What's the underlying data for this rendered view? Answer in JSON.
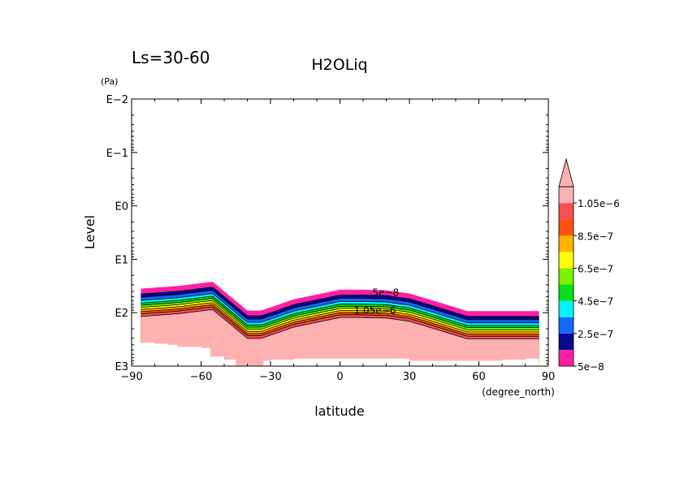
{
  "chart_data": {
    "type": "contour",
    "period_label": "Ls=30-60",
    "title": "H2OLiq",
    "xlabel": "latitude",
    "xunits": "(degree_north)",
    "ylabel": "Level",
    "yunits": "(Pa)",
    "xlim": [
      -90,
      90
    ],
    "xticks": [
      -90,
      -60,
      -30,
      0,
      30,
      60,
      90
    ],
    "xtick_labels": [
      "−90",
      "−60",
      "−30",
      "0",
      "30",
      "60",
      "90"
    ],
    "y_scale": "log",
    "ylim_log10": [
      -2,
      3
    ],
    "yticks_log10": [
      -2,
      -1,
      0,
      1,
      2,
      3
    ],
    "ytick_labels": [
      "E−2",
      "E−1",
      "E0",
      "E1",
      "E2",
      "E3"
    ],
    "levels": [
      5e-08,
      1.5e-07,
      2.5e-07,
      3.5e-07,
      4.5e-07,
      5.5e-07,
      6.5e-07,
      7.5e-07,
      8.5e-07,
      9.5e-07,
      1.05e-06
    ],
    "colorbar": {
      "colors": [
        "#ff1fa5",
        "#06068f",
        "#1565ff",
        "#00f5ff",
        "#06e01a",
        "#7cf000",
        "#ffff00",
        "#ffb200",
        "#ff5010",
        "#f55050",
        "#ffb0b0"
      ],
      "labels": [
        "5e−8",
        "2.5e−7",
        "4.5e−7",
        "6.5e−7",
        "8.5e−7",
        "1.05e−6"
      ],
      "label_values": [
        5e-08,
        2.5e-07,
        4.5e-07,
        6.5e-07,
        8.5e-07,
        1.05e-06
      ],
      "extend": "max"
    },
    "band_lats": [
      -86,
      -70,
      -55,
      -40,
      -34,
      -20,
      0,
      10,
      20,
      30,
      40,
      55,
      70,
      86
    ],
    "band_top_log10": [
      1.55,
      1.5,
      1.42,
      1.96,
      1.96,
      1.75,
      1.57,
      1.57,
      1.58,
      1.64,
      1.77,
      1.97,
      1.97,
      1.97
    ],
    "band_profile": [
      {
        "offset": 0.0,
        "value": 5e-08
      },
      {
        "offset": 0.1,
        "value": 1.5e-07
      },
      {
        "offset": 0.16,
        "value": 2.5e-07
      },
      {
        "offset": 0.22,
        "value": 3.5e-07
      },
      {
        "offset": 0.27,
        "value": 4.5e-07
      },
      {
        "offset": 0.31,
        "value": 5.5e-07
      },
      {
        "offset": 0.35,
        "value": 6.5e-07
      },
      {
        "offset": 0.39,
        "value": 7.5e-07
      },
      {
        "offset": 0.43,
        "value": 8.5e-07
      },
      {
        "offset": 0.47,
        "value": 9.5e-07
      },
      {
        "offset": 0.52,
        "value": 1.05e-06
      }
    ],
    "surface_lats": [
      -88,
      -84,
      -80,
      -74,
      -70,
      -60,
      -56,
      -50,
      -45,
      -40,
      -36,
      -33,
      -30,
      -20,
      0,
      20,
      30,
      40,
      50,
      60,
      70,
      80,
      86
    ],
    "surface_log10": [
      2.56,
      2.56,
      2.58,
      2.6,
      2.64,
      2.66,
      2.82,
      2.88,
      2.99,
      3.0,
      3.05,
      2.9,
      2.88,
      2.86,
      2.86,
      2.86,
      2.9,
      2.9,
      2.9,
      2.9,
      2.88,
      2.86,
      2.8
    ],
    "annotations": [
      "5e−8",
      "1.05e−6"
    ]
  }
}
